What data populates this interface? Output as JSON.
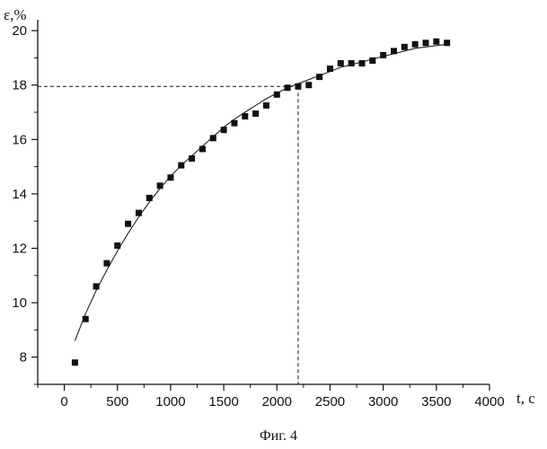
{
  "chart_data": {
    "type": "scatter",
    "xlabel": "t, с",
    "ylabel": "ε,%",
    "caption": "Фиг. 4",
    "xlim": [
      -250,
      4000
    ],
    "ylim": [
      7,
      20.4
    ],
    "x_ticks": [
      0,
      500,
      1000,
      1500,
      2000,
      2500,
      3000,
      3500,
      4000
    ],
    "x_tick_labels": [
      "0",
      "500",
      "1000",
      "1500",
      "2000",
      "2500",
      "3000",
      "3500",
      "4000"
    ],
    "y_ticks": [
      8,
      10,
      12,
      14,
      16,
      18,
      20
    ],
    "y_tick_labels": [
      "8",
      "10",
      "12",
      "14",
      "16",
      "18",
      "20"
    ],
    "grid": false,
    "series": [
      {
        "kind": "points",
        "marker": "square",
        "x": [
          100,
          200,
          300,
          400,
          500,
          600,
          700,
          800,
          900,
          1000,
          1100,
          1200,
          1300,
          1400,
          1500,
          1600,
          1700,
          1800,
          1900,
          2000,
          2100,
          2200,
          2300,
          2400,
          2500,
          2600,
          2700,
          2800,
          2900,
          3000,
          3100,
          3200,
          3300,
          3400,
          3500,
          3600
        ],
        "y": [
          7.8,
          9.4,
          10.6,
          11.45,
          12.1,
          12.9,
          13.3,
          13.85,
          14.3,
          14.6,
          15.05,
          15.3,
          15.65,
          16.05,
          16.35,
          16.6,
          16.85,
          16.95,
          17.25,
          17.65,
          17.9,
          17.95,
          18.0,
          18.3,
          18.6,
          18.8,
          18.8,
          18.8,
          18.9,
          19.1,
          19.25,
          19.4,
          19.5,
          19.55,
          19.6,
          19.55
        ]
      },
      {
        "kind": "fit-line",
        "x": [
          100,
          200,
          300,
          400,
          500,
          600,
          700,
          800,
          900,
          1000,
          1100,
          1200,
          1300,
          1400,
          1500,
          1600,
          1700,
          1800,
          1900,
          2000,
          2100,
          2200,
          2300,
          2400,
          2500,
          2600,
          2700,
          2800,
          2900,
          3000,
          3100,
          3200,
          3300,
          3400,
          3500,
          3600
        ],
        "y": [
          8.6,
          9.6,
          10.45,
          11.2,
          11.9,
          12.55,
          13.15,
          13.7,
          14.2,
          14.65,
          15.05,
          15.4,
          15.75,
          16.1,
          16.45,
          16.75,
          17.0,
          17.25,
          17.5,
          17.7,
          17.9,
          18.05,
          18.2,
          18.35,
          18.5,
          18.65,
          18.75,
          18.85,
          18.95,
          19.05,
          19.15,
          19.25,
          19.35,
          19.4,
          19.45,
          19.5
        ]
      }
    ],
    "reference": {
      "x": 2200,
      "y": 17.95
    }
  }
}
